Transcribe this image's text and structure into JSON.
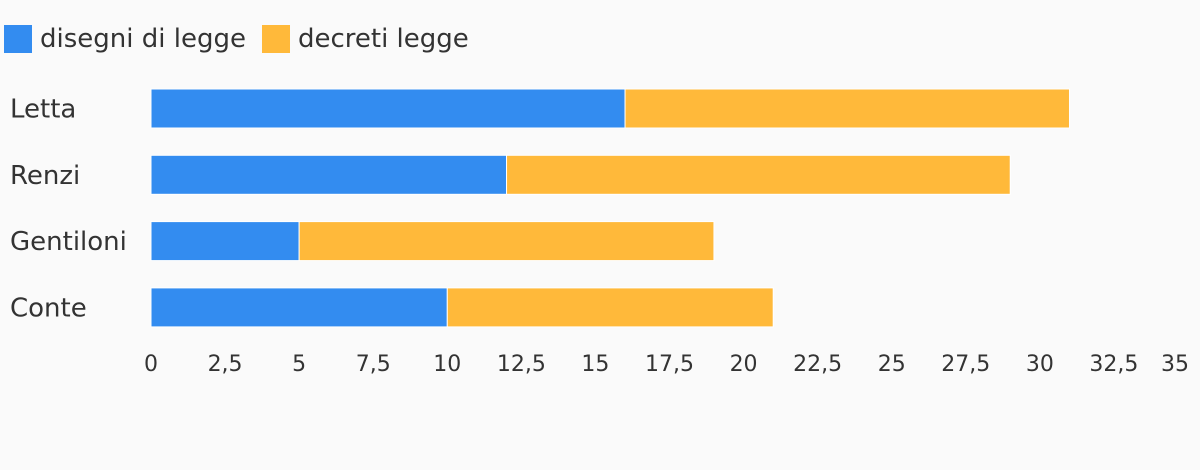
{
  "chart_data": {
    "type": "bar",
    "orientation": "horizontal",
    "stacked": true,
    "categories": [
      "Letta",
      "Renzi",
      "Gentiloni",
      "Conte"
    ],
    "series": [
      {
        "name": "disegni di legge",
        "color": "#338cf0",
        "values": [
          16,
          12,
          5,
          10
        ]
      },
      {
        "name": "decreti legge",
        "color": "#ffb93a",
        "values": [
          15,
          17,
          14,
          11
        ]
      }
    ],
    "xlim": [
      0,
      35
    ],
    "xticks": [
      "0",
      "2,5",
      "5",
      "7,5",
      "10",
      "12,5",
      "15",
      "17,5",
      "20",
      "22,5",
      "25",
      "27,5",
      "30",
      "32,5",
      "35"
    ],
    "grid": false,
    "legend_position": "top-left"
  }
}
